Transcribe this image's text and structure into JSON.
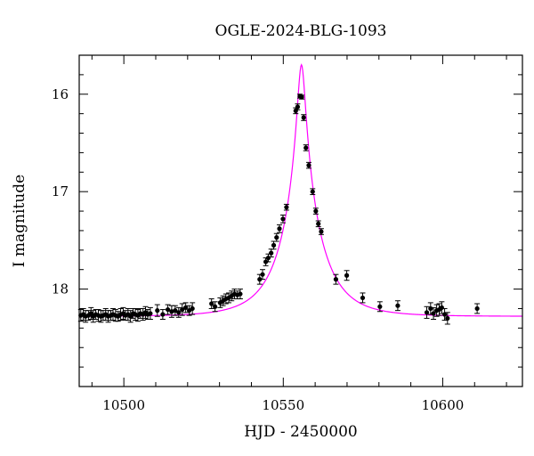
{
  "chart_data": {
    "type": "scatter",
    "title": "OGLE-2024-BLG-1093",
    "xlabel": "HJD - 2450000",
    "ylabel": "I magnitude",
    "xlim": [
      10486,
      10625
    ],
    "ylim": [
      19.0,
      15.6
    ],
    "y_inverted": true,
    "grid": false,
    "x_ticks": [
      10500,
      10550,
      10600
    ],
    "x_tick_labels": [
      "10500",
      "10550",
      "10600"
    ],
    "y_ticks": [
      16,
      17,
      18
    ],
    "y_tick_labels": [
      "16",
      "17",
      "18"
    ],
    "series": [
      {
        "kind": "points-with-errorbars",
        "color": "#000000",
        "x": [
          10486.5,
          10487.3,
          10488.0,
          10488.9,
          10489.7,
          10490.4,
          10491.2,
          10492.0,
          10492.8,
          10493.5,
          10494.3,
          10495.1,
          10495.9,
          10496.6,
          10497.4,
          10498.2,
          10499.0,
          10499.8,
          10500.5,
          10501.3,
          10502.1,
          10502.9,
          10503.6,
          10504.4,
          10505.2,
          10506.0,
          10506.8,
          10507.5,
          10508.3,
          10510.5,
          10512.2,
          10513.8,
          10515.0,
          10516.1,
          10517.2,
          10518.3,
          10519.4,
          10520.5,
          10521.5,
          10527.5,
          10528.6,
          10530.2,
          10531.1,
          10532.0,
          10532.9,
          10533.8,
          10534.7,
          10535.6,
          10536.5,
          10542.6,
          10543.5,
          10544.5,
          10545.3,
          10546.2,
          10547.0,
          10547.9,
          10548.8,
          10549.9,
          10551.0,
          10553.9,
          10554.5,
          10555.2,
          10555.8,
          10556.4,
          10557.1,
          10558.0,
          10559.2,
          10560.2,
          10561.0,
          10561.9,
          10566.5,
          10569.9,
          10574.9,
          10580.3,
          10585.9,
          10595.0,
          10596.2,
          10597.1,
          10598.1,
          10598.9,
          10599.7,
          10600.6,
          10601.5,
          10610.8
        ],
        "y": [
          18.27,
          18.26,
          18.28,
          18.27,
          18.25,
          18.28,
          18.26,
          18.27,
          18.28,
          18.27,
          18.26,
          18.28,
          18.27,
          18.26,
          18.27,
          18.28,
          18.26,
          18.25,
          18.27,
          18.26,
          18.28,
          18.25,
          18.26,
          18.27,
          18.25,
          18.26,
          18.24,
          18.26,
          18.25,
          18.22,
          18.26,
          18.21,
          18.23,
          18.22,
          18.24,
          18.21,
          18.19,
          18.22,
          18.2,
          18.15,
          18.18,
          18.14,
          18.12,
          18.1,
          18.09,
          18.07,
          18.05,
          18.06,
          18.05,
          17.9,
          17.85,
          17.72,
          17.68,
          17.63,
          17.55,
          17.47,
          17.38,
          17.28,
          17.16,
          16.17,
          16.13,
          16.02,
          16.03,
          16.24,
          16.55,
          16.73,
          17.0,
          17.2,
          17.33,
          17.41,
          17.9,
          17.86,
          18.09,
          18.18,
          18.17,
          18.24,
          18.2,
          18.25,
          18.22,
          18.21,
          18.19,
          18.26,
          18.3,
          18.2
        ],
        "err": [
          0.06,
          0.06,
          0.06,
          0.05,
          0.06,
          0.06,
          0.05,
          0.06,
          0.06,
          0.05,
          0.06,
          0.06,
          0.05,
          0.06,
          0.06,
          0.05,
          0.06,
          0.06,
          0.05,
          0.06,
          0.06,
          0.05,
          0.06,
          0.06,
          0.05,
          0.06,
          0.06,
          0.05,
          0.06,
          0.06,
          0.05,
          0.05,
          0.06,
          0.05,
          0.05,
          0.06,
          0.05,
          0.05,
          0.06,
          0.05,
          0.05,
          0.05,
          0.05,
          0.05,
          0.05,
          0.05,
          0.05,
          0.04,
          0.05,
          0.05,
          0.05,
          0.04,
          0.04,
          0.04,
          0.04,
          0.04,
          0.04,
          0.04,
          0.03,
          0.03,
          0.03,
          0.02,
          0.02,
          0.03,
          0.03,
          0.03,
          0.03,
          0.03,
          0.03,
          0.03,
          0.05,
          0.05,
          0.05,
          0.05,
          0.05,
          0.06,
          0.06,
          0.06,
          0.06,
          0.06,
          0.06,
          0.06,
          0.06,
          0.05
        ]
      },
      {
        "kind": "model-curve",
        "color": "#ff00ff",
        "t0": 10555.7,
        "u0": 0.093,
        "tE": 12.3,
        "baseline_mag": 18.28
      }
    ]
  }
}
